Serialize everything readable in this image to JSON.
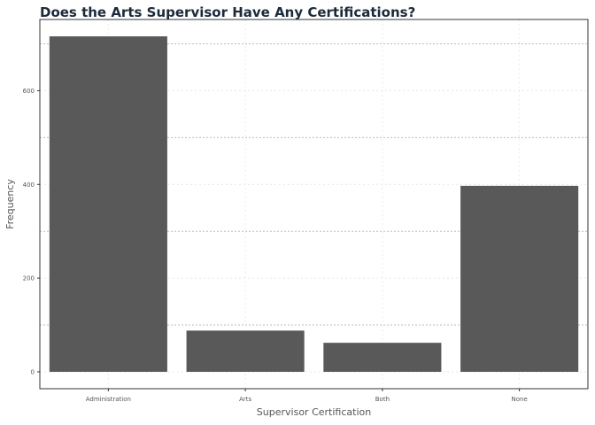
{
  "chart_data": {
    "type": "bar",
    "title": "Does the Arts Supervisor Have Any Certifications?",
    "xlabel": "Supervisor Certification",
    "ylabel": "Frequency",
    "categories": [
      "Administration",
      "Arts",
      "Both",
      "None"
    ],
    "values": [
      716,
      88,
      62,
      397
    ],
    "ylim": [
      -36,
      752
    ],
    "yticks": [
      0,
      200,
      400,
      600
    ],
    "ytick_labels": [
      "0",
      "200",
      "400",
      "600"
    ],
    "grid": true,
    "legend": "none",
    "bar_color": "#595959",
    "title_color": "#1b2a3a"
  }
}
